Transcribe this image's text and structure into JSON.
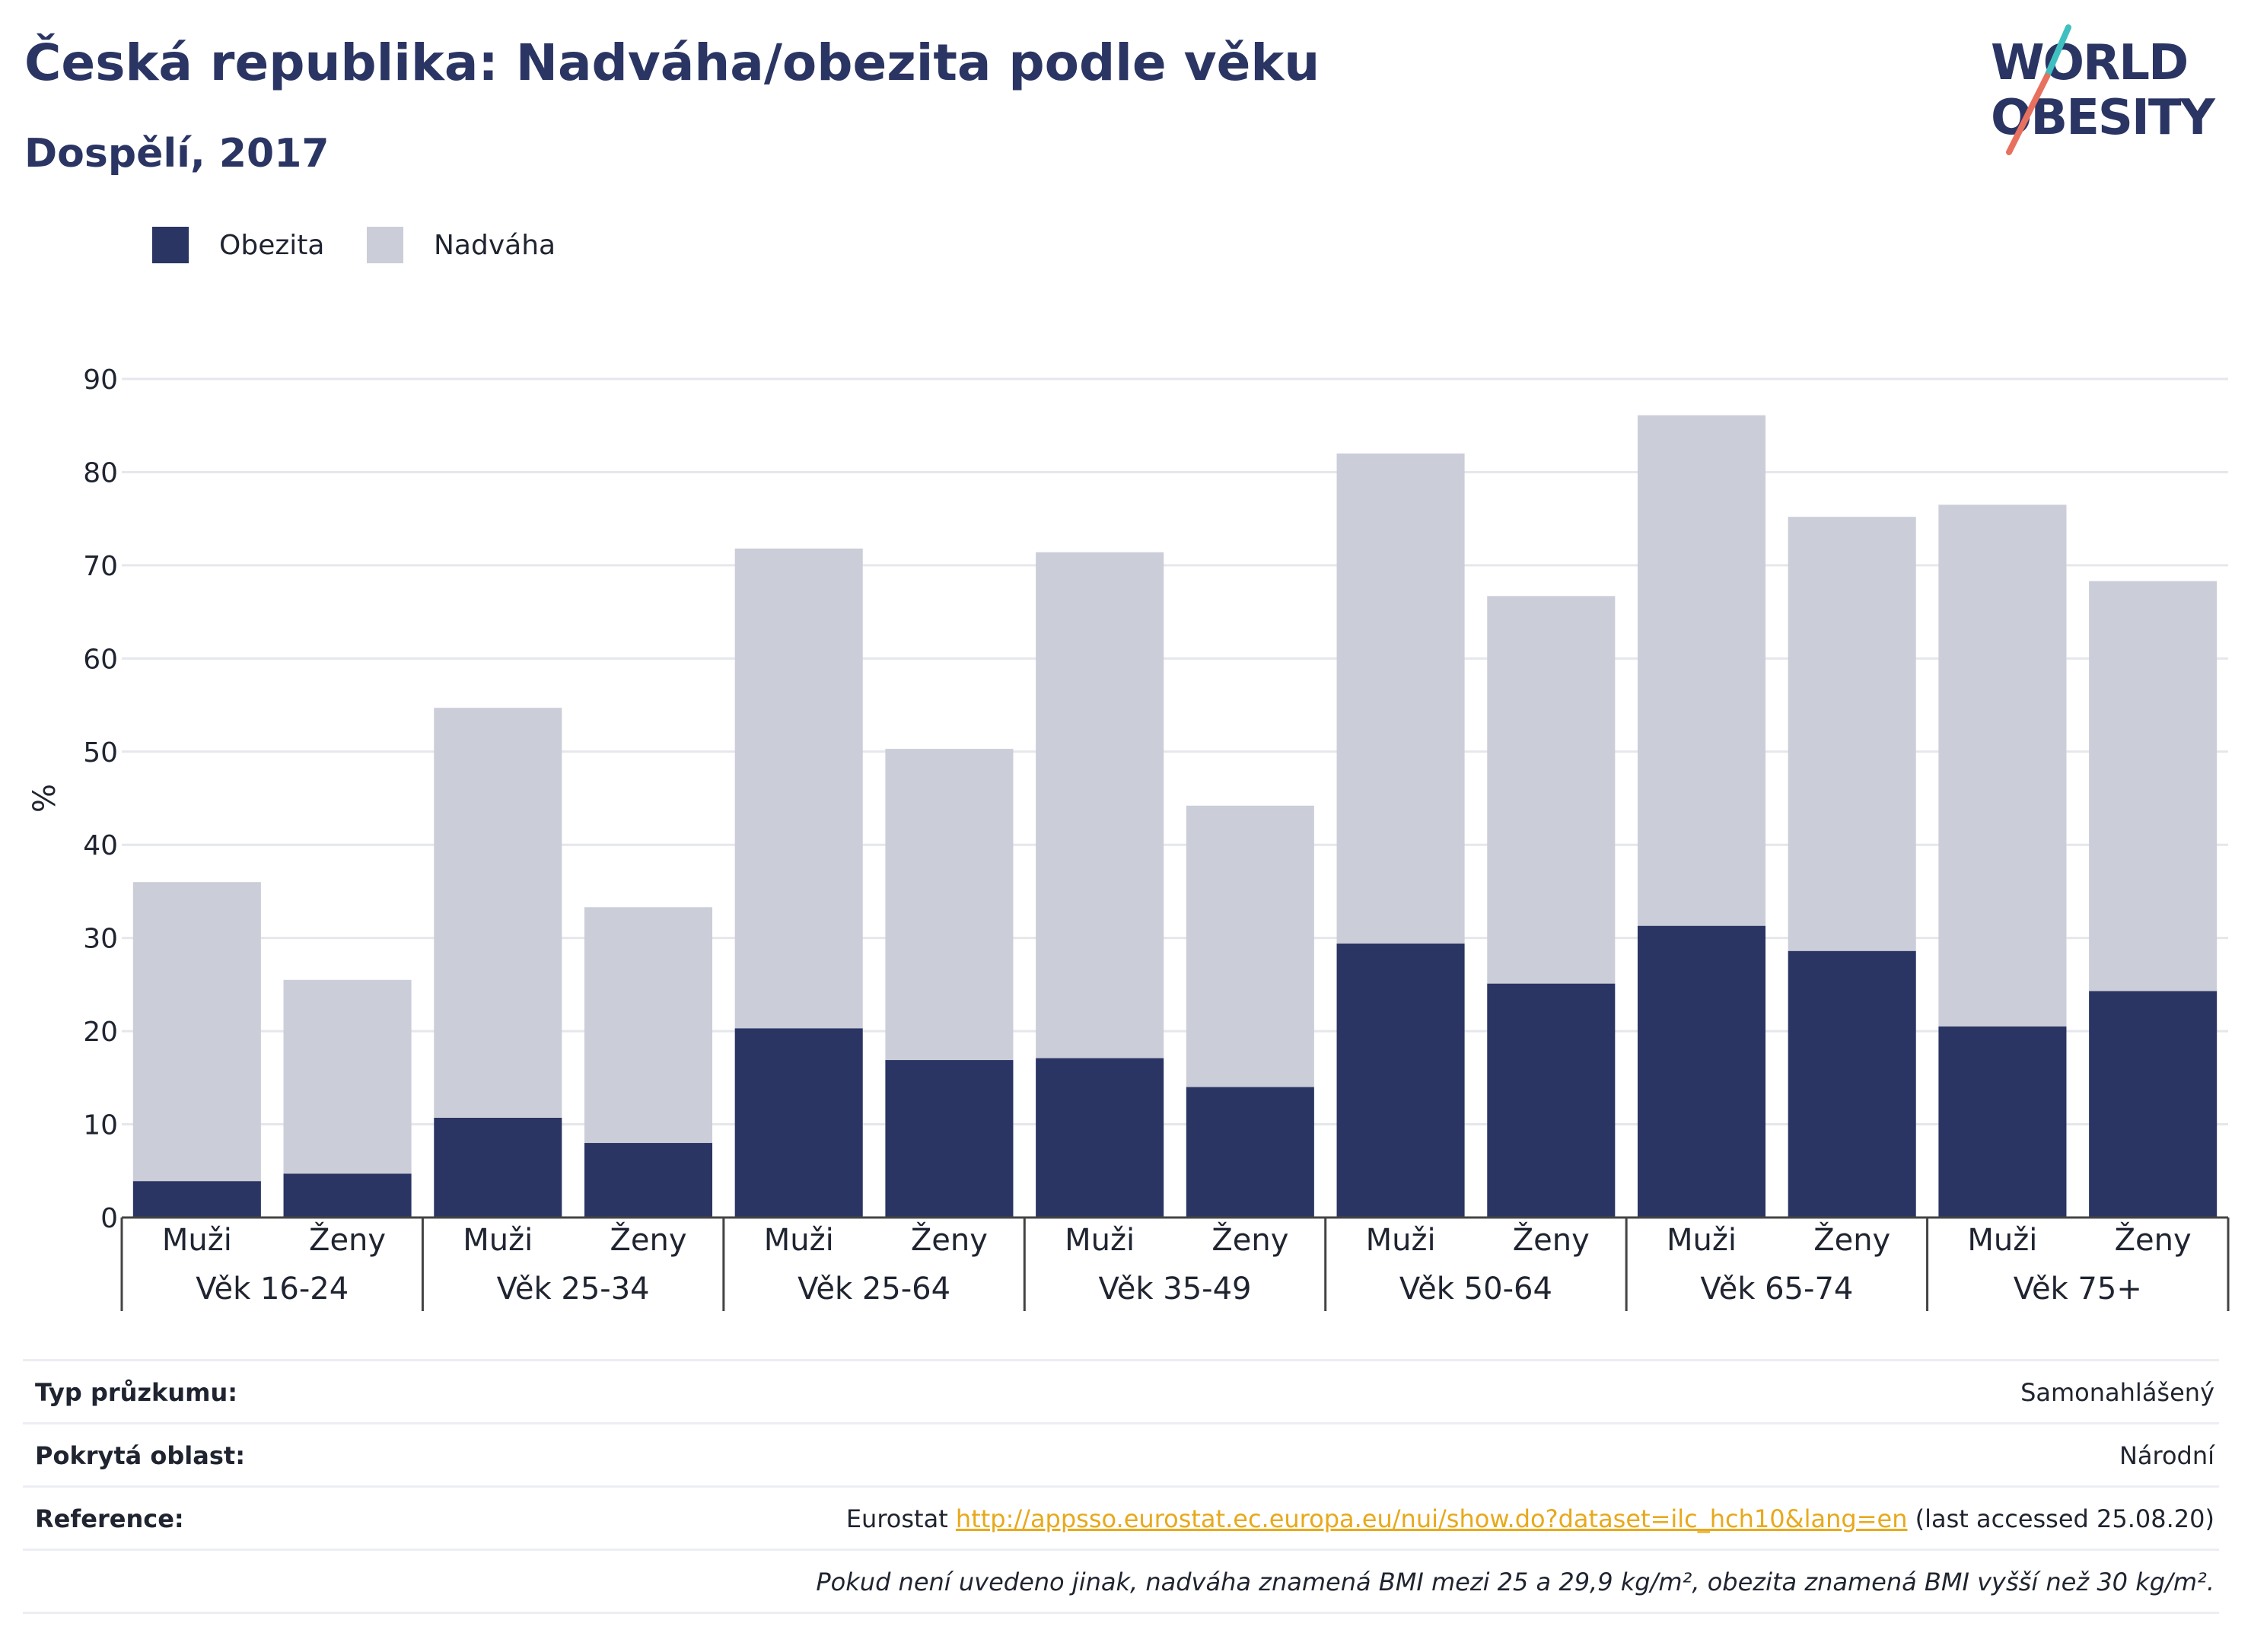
{
  "header": {
    "title": "Česká republika: Nadváha/obezita podle věku",
    "subtitle": "Dospělí, 2017"
  },
  "logo": {
    "line1": "WORLD",
    "line2": "OBESITY",
    "icon": "world-obesity-logo"
  },
  "colors": {
    "obezita": "#2a3563",
    "nadvaha": "#cbcdd8",
    "title": "#2a3563",
    "link": "#e7a91c",
    "grid": "#e6e7ec"
  },
  "legend": {
    "items": [
      {
        "label": "Obezita"
      },
      {
        "label": "Nadváha"
      }
    ]
  },
  "chart_data": {
    "type": "bar",
    "stacked": true,
    "ylabel": "%",
    "ylim": [
      0,
      90
    ],
    "yticks": [
      0,
      10,
      20,
      30,
      40,
      50,
      60,
      70,
      80,
      90
    ],
    "grid": true,
    "legend_position": "top-left",
    "groups": [
      "Věk 16-24",
      "Věk 25-34",
      "Věk 25-64",
      "Věk 35-49",
      "Věk 50-64",
      "Věk 65-74",
      "Věk 75+"
    ],
    "subcategories": [
      "Muži",
      "Ženy"
    ],
    "series": [
      {
        "name": "Obezita",
        "values": [
          3.9,
          4.7,
          10.7,
          8.0,
          20.3,
          16.9,
          17.1,
          14.0,
          29.4,
          25.1,
          31.3,
          28.6,
          20.5,
          24.3
        ]
      },
      {
        "name": "Nadváha",
        "values": [
          32.1,
          20.8,
          44.0,
          25.3,
          51.5,
          33.4,
          54.3,
          30.2,
          52.6,
          41.6,
          54.8,
          46.6,
          56.0,
          44.0
        ]
      }
    ]
  },
  "info": {
    "rows": [
      {
        "label": "Typ průzkumu:",
        "value": "Samonahlášený"
      },
      {
        "label": "Pokrytá oblast:",
        "value": "Národní"
      },
      {
        "label": "Reference:",
        "value_prefix": "Eurostat ",
        "link": "http://appsso.eurostat.ec.europa.eu/nui/show.do?dataset=ilc_hch10&lang=en",
        "value_suffix": " (last accessed 25.08.20)"
      }
    ],
    "note": "Pokud není uvedeno jinak, nadváha znamená BMI mezi 25 a 29,9 kg/m², obezita znamená BMI vyšší než 30 kg/m²."
  }
}
